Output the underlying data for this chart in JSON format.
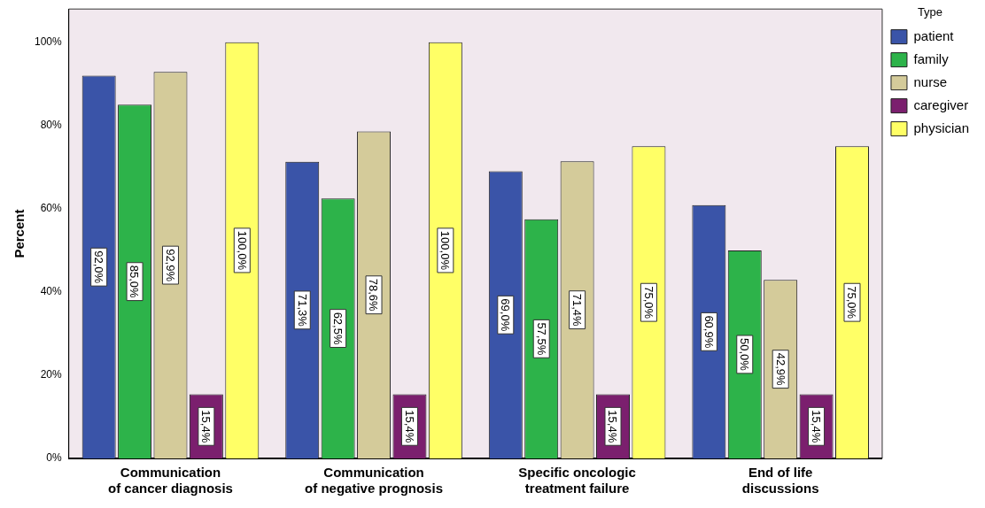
{
  "chart_data": {
    "type": "bar",
    "ylabel": "Percent",
    "legend_title": "Type",
    "legend": "right",
    "grid": false,
    "categories": [
      "Communication\nof cancer diagnosis",
      "Communication\nof negative prognosis",
      "Specific oncologic\ntreatment failure",
      "End of life\ndiscussions"
    ],
    "ylim": [
      0,
      108
    ],
    "yticks": [
      {
        "value": 0,
        "label": "0%"
      },
      {
        "value": 20,
        "label": "20%"
      },
      {
        "value": 40,
        "label": "40%"
      },
      {
        "value": 60,
        "label": "60%"
      },
      {
        "value": 80,
        "label": "80%"
      },
      {
        "value": 100,
        "label": "100%"
      }
    ],
    "series": [
      {
        "name": "patient",
        "color": "#3a54a8",
        "values": [
          92.0,
          71.3,
          69.0,
          60.9
        ],
        "value_labels": [
          "92,0%",
          "71,3%",
          "69,0%",
          "60,9%"
        ]
      },
      {
        "name": "family",
        "color": "#2db34a",
        "values": [
          85.0,
          62.5,
          57.5,
          50.0
        ],
        "value_labels": [
          "85,0%",
          "62,5%",
          "57,5%",
          "50,0%"
        ]
      },
      {
        "name": "nurse",
        "color": "#d4cb9a",
        "values": [
          92.9,
          78.6,
          71.4,
          42.9
        ],
        "value_labels": [
          "92,9%",
          "78,6%",
          "71,4%",
          "42,9%"
        ]
      },
      {
        "name": "caregiver",
        "color": "#7b1f6e",
        "values": [
          15.4,
          15.4,
          15.4,
          15.4
        ],
        "value_labels": [
          "15,4%",
          "15,4%",
          "15,4%",
          "15,4%"
        ]
      },
      {
        "name": "physician",
        "color": "#ffff66",
        "values": [
          100.0,
          100.0,
          75.0,
          75.0
        ],
        "value_labels": [
          "100,0%",
          "100,0%",
          "75,0%",
          "75,0%"
        ]
      }
    ]
  }
}
